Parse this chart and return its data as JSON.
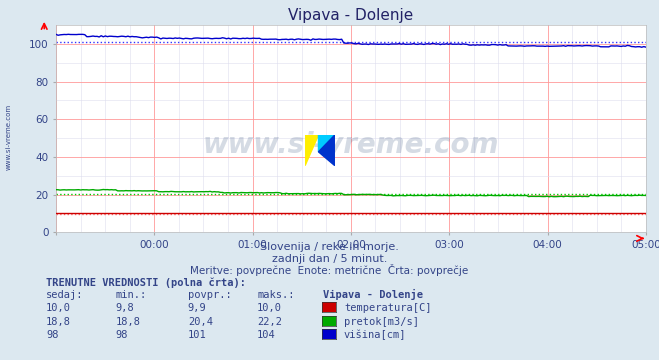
{
  "title": "Vipava - Dolenje",
  "bg_color": "#dce8f0",
  "plot_bg_color": "#ffffff",
  "grid_color_major": "#ff9999",
  "grid_color_minor": "#ffcccc",
  "grid_color_minor2": "#e8e8ff",
  "xlabel_texts": [
    "00:00",
    "01:00",
    "02:00",
    "03:00",
    "04:00",
    "05:00"
  ],
  "ylabel_range": [
    0,
    110
  ],
  "yticks": [
    0,
    20,
    40,
    60,
    80,
    100
  ],
  "subtitle1": "Slovenija / reke in morje.",
  "subtitle2": "zadnji dan / 5 minut.",
  "subtitle3": "Meritve: povprečne  Enote: metrične  Črta: povprečje",
  "watermark": "www.si-vreme.com",
  "legend_title": "Vipava - Dolenje",
  "legend_entries": [
    "temperatura[C]",
    "pretok[m3/s]",
    "višina[cm]"
  ],
  "legend_colors": [
    "#cc0000",
    "#00aa00",
    "#0000cc"
  ],
  "table_title": "TRENUTNE VREDNOSTI (polna črta):",
  "table_headers": [
    "sedaj:",
    "min.:",
    "povpr.:",
    "maks.:"
  ],
  "table_data": [
    [
      "10,0",
      "9,8",
      "9,9",
      "10,0"
    ],
    [
      "18,8",
      "18,8",
      "20,4",
      "22,2"
    ],
    [
      "98",
      "98",
      "101",
      "104"
    ]
  ],
  "n_points": 288,
  "temp_color": "#cc0000",
  "flow_color": "#00aa00",
  "height_color": "#0000cc",
  "flow_avg_color": "#00cc00",
  "height_avg_color": "#3333ff",
  "temp_avg_color": "#ff6666",
  "text_color": "#334488",
  "side_label": "www.si-vreme.com"
}
